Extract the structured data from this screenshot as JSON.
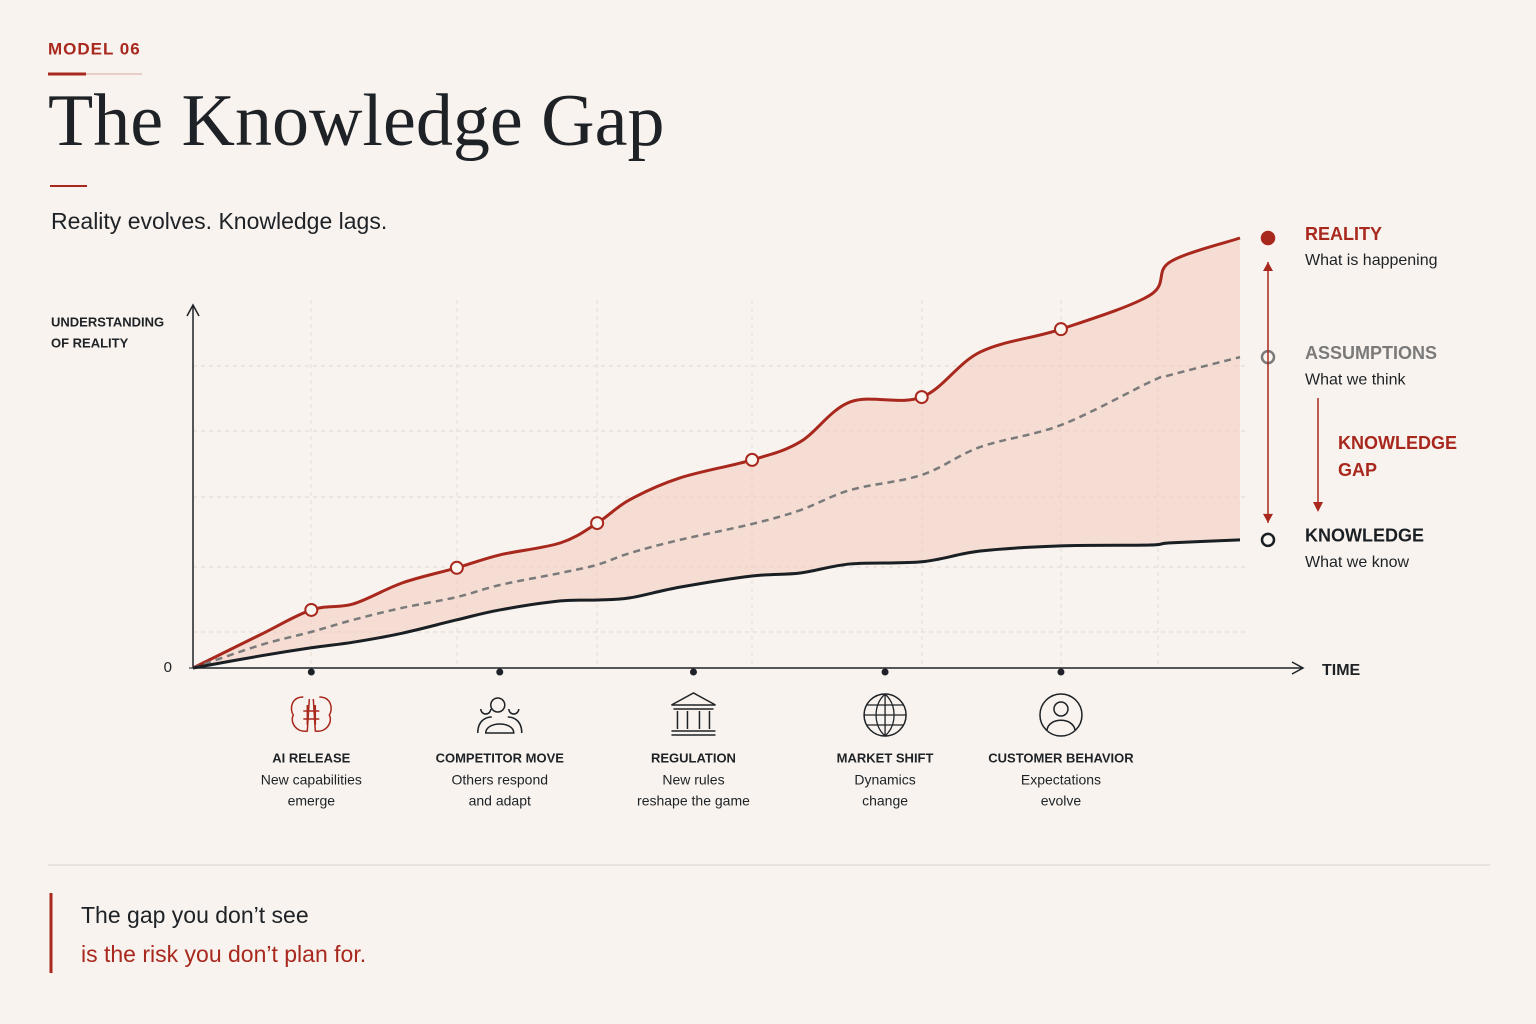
{
  "header": {
    "label": "MODEL 06",
    "title": "The Knowledge Gap",
    "subtitle": "Reality evolves. Knowledge lags."
  },
  "chart_data": {
    "type": "line",
    "y_label": [
      "UNDERSTANDING",
      "OF REALITY"
    ],
    "x_label": "TIME",
    "xlim": [
      0,
      100
    ],
    "ylim": [
      0,
      100
    ],
    "yticks": [
      0
    ],
    "x": [
      0,
      6.4,
      11.3,
      15.3,
      20.0,
      25.2,
      29.3,
      35.1,
      38.6,
      41.7,
      46.5,
      53.4,
      58.0,
      62.8,
      69.6,
      75.2,
      82.9,
      91.4,
      93.3,
      100
    ],
    "series": [
      {
        "name": "REALITY",
        "description": "What is happening",
        "color": "#a8281e",
        "dashed": false,
        "values": [
          0,
          7.7,
          13.5,
          14.9,
          19.8,
          23.3,
          26.3,
          29.1,
          33.7,
          39.1,
          44.2,
          48.4,
          52.6,
          61.9,
          63.0,
          73.5,
          78.8,
          86.7,
          94.4,
          100
        ],
        "markers": [
          2,
          5,
          8,
          11,
          14,
          16
        ]
      },
      {
        "name": "ASSUMPTIONS",
        "description": "What we think",
        "color": "#7a7a7a",
        "dashed": true,
        "values": [
          0,
          5.3,
          8.4,
          11.2,
          14.0,
          16.5,
          19.3,
          22.1,
          24.0,
          26.7,
          29.8,
          33.5,
          36.7,
          41.4,
          44.9,
          51.4,
          56.5,
          66.5,
          68.1,
          72.3
        ]
      },
      {
        "name": "KNOWLEDGE",
        "description": "What we know",
        "color": "#1a1f24",
        "dashed": false,
        "values": [
          0,
          2.8,
          4.7,
          6.0,
          8.1,
          11.2,
          13.5,
          15.6,
          15.8,
          16.3,
          18.8,
          21.4,
          22.1,
          24.2,
          24.7,
          27.2,
          28.4,
          28.6,
          29.1,
          29.8
        ]
      }
    ],
    "gap_label": [
      "KNOWLEDGE",
      "GAP"
    ],
    "events": [
      {
        "name": "AI RELEASE",
        "description": [
          "New capabilities",
          "emerge"
        ],
        "x": 11.3
      },
      {
        "name": "COMPETITOR MOVE",
        "description": [
          "Others respond",
          "and adapt"
        ],
        "x": 29.3
      },
      {
        "name": "REGULATION",
        "description": [
          "New rules",
          "reshape the game"
        ],
        "x": 47.8
      },
      {
        "name": "MARKET SHIFT",
        "description": [
          "Dynamics",
          "change"
        ],
        "x": 66.1
      },
      {
        "name": "CUSTOMER BEHAVIOR",
        "description": [
          "Expectations",
          "evolve"
        ],
        "x": 82.9
      }
    ]
  },
  "footer": {
    "lines": [
      "The gap you don’t see",
      "is the risk you don’t plan for."
    ]
  }
}
